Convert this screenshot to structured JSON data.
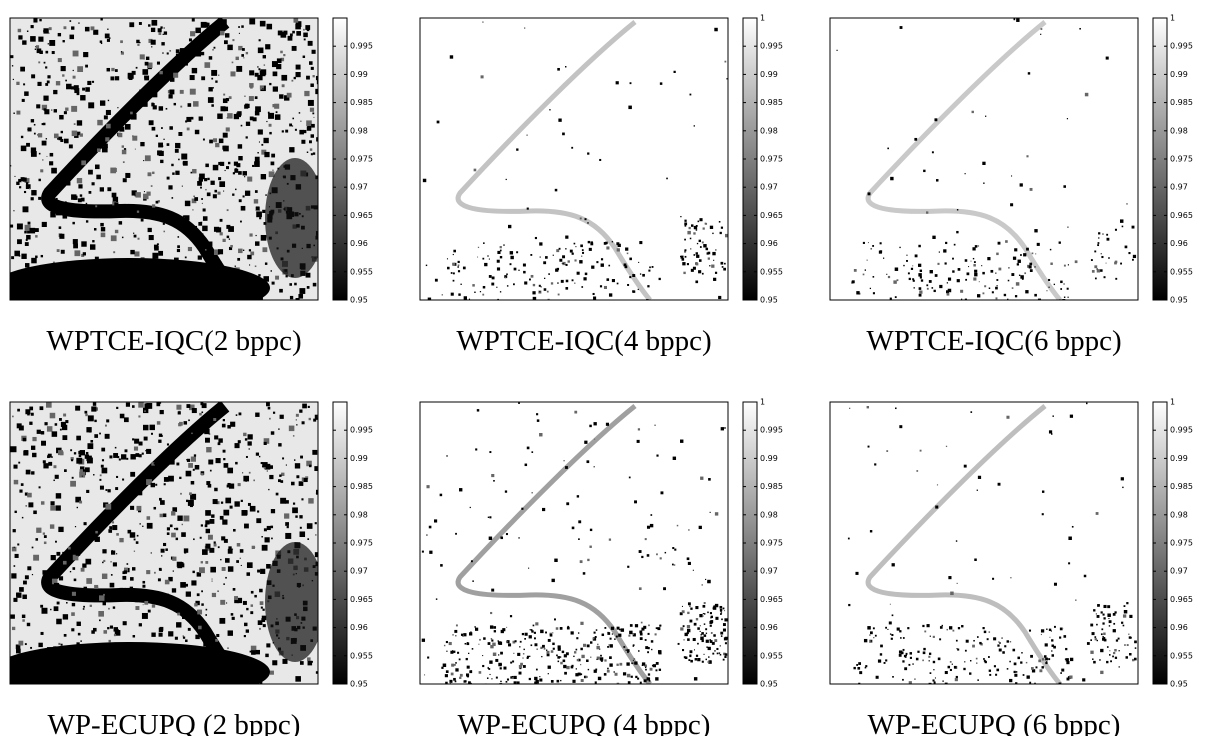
{
  "panels": [
    {
      "caption": "WPTCE-IQC(2 bppc)",
      "colorbar": {
        "lim": [
          0.95,
          1
        ],
        "ticks": [
          0.95,
          0.955,
          0.96,
          0.965,
          0.97,
          0.975,
          0.98,
          0.985,
          0.99,
          0.995
        ]
      }
    },
    {
      "caption": "WPTCE-IQC(4 bppc)",
      "colorbar": {
        "lim": [
          0.95,
          1
        ],
        "ticks": [
          0.95,
          0.955,
          0.96,
          0.965,
          0.97,
          0.975,
          0.98,
          0.985,
          0.99,
          0.995,
          1
        ]
      }
    },
    {
      "caption": "WPTCE-IQC(6 bppc)",
      "colorbar": {
        "lim": [
          0.95,
          1
        ],
        "ticks": [
          0.95,
          0.955,
          0.96,
          0.965,
          0.97,
          0.975,
          0.98,
          0.985,
          0.99,
          0.995,
          1
        ]
      }
    },
    {
      "caption": "WP-ECUPQ (2 bppc)",
      "colorbar": {
        "lim": [
          0.95,
          1
        ],
        "ticks": [
          0.95,
          0.955,
          0.96,
          0.965,
          0.97,
          0.975,
          0.98,
          0.985,
          0.99,
          0.995
        ]
      }
    },
    {
      "caption": "WP-ECUPQ (4 bppc)",
      "colorbar": {
        "lim": [
          0.95,
          1
        ],
        "ticks": [
          0.95,
          0.955,
          0.96,
          0.965,
          0.97,
          0.975,
          0.98,
          0.985,
          0.99,
          0.995,
          1
        ]
      }
    },
    {
      "caption": "WP-ECUPQ (6 bppc)",
      "colorbar": {
        "lim": [
          0.95,
          1
        ],
        "ticks": [
          0.95,
          0.955,
          0.96,
          0.965,
          0.97,
          0.975,
          0.98,
          0.985,
          0.99,
          0.995,
          1
        ]
      }
    }
  ]
}
